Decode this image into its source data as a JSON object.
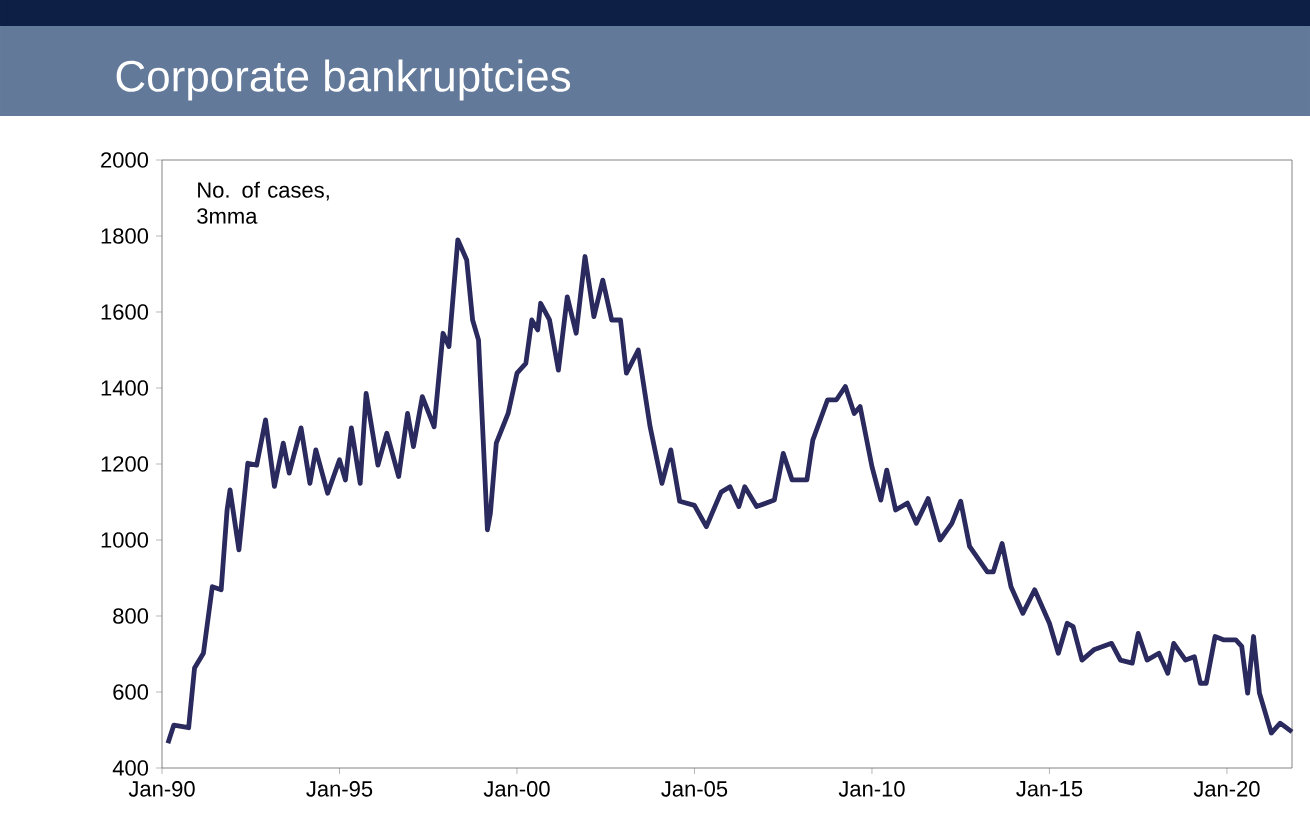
{
  "chart_data": {
    "type": "line",
    "title": "Corporate bankruptcies",
    "annotations": [
      "No. of cases, 3mma"
    ],
    "x": [
      "1990-03",
      "1990-05",
      "1990-10",
      "1990-12",
      "1991-03",
      "1991-06",
      "1991-09",
      "1991-11",
      "1991-12",
      "1992-03",
      "1992-06",
      "1992-09",
      "1992-12",
      "1993-03",
      "1993-06",
      "1993-08",
      "1993-12",
      "1994-03",
      "1994-05",
      "1994-09",
      "1995-01",
      "1995-03",
      "1995-05",
      "1995-08",
      "1995-10",
      "1996-02",
      "1996-05",
      "1996-09",
      "1996-12",
      "1997-02",
      "1997-05",
      "1997-09",
      "1997-12",
      "1998-02",
      "1998-05",
      "1998-08",
      "1998-10",
      "1998-12",
      "1999-03",
      "1999-04",
      "1999-06",
      "1999-10",
      "2000-01",
      "2000-04",
      "2000-06",
      "2000-08",
      "2000-09",
      "2000-12",
      "2001-03",
      "2001-06",
      "2001-09",
      "2001-12",
      "2002-03",
      "2002-06",
      "2002-09",
      "2002-12",
      "2003-02",
      "2003-06",
      "2003-10",
      "2004-02",
      "2004-05",
      "2004-08",
      "2005-01",
      "2005-05",
      "2005-10",
      "2006-01",
      "2006-04",
      "2006-06",
      "2006-10",
      "2007-04",
      "2007-07",
      "2007-10",
      "2008-03",
      "2008-05",
      "2008-10",
      "2009-01",
      "2009-04",
      "2009-07",
      "2009-09",
      "2010-01",
      "2010-04",
      "2010-06",
      "2010-09",
      "2011-01",
      "2011-04",
      "2011-08",
      "2011-12",
      "2012-04",
      "2012-07",
      "2012-10",
      "2013-04",
      "2013-06",
      "2013-09",
      "2013-12",
      "2014-04",
      "2014-08",
      "2015-01",
      "2015-04",
      "2015-07",
      "2015-09",
      "2015-12",
      "2016-04",
      "2016-10",
      "2017-01",
      "2017-05",
      "2017-07",
      "2017-10",
      "2018-02",
      "2018-05",
      "2018-07",
      "2018-11",
      "2019-02",
      "2019-04",
      "2019-06",
      "2019-09",
      "2019-12",
      "2020-04",
      "2020-06",
      "2020-08",
      "2020-10",
      "2020-12",
      "2021-04",
      "2021-07",
      "2021-11"
    ],
    "series": [
      {
        "color": "#2b2a5e",
        "values": [
          465,
          513,
          506,
          663,
          702,
          877,
          869,
          1079,
          1132,
          974,
          1202,
          1197,
          1316,
          1141,
          1255,
          1176,
          1295,
          1149,
          1237,
          1123,
          1211,
          1158,
          1295,
          1149,
          1386,
          1197,
          1281,
          1167,
          1333,
          1246,
          1377,
          1298,
          1544,
          1509,
          1790,
          1737,
          1579,
          1526,
          1027,
          1070,
          1255,
          1333,
          1439,
          1465,
          1579,
          1553,
          1623,
          1579,
          1447,
          1640,
          1544,
          1746,
          1588,
          1684,
          1579,
          1579,
          1439,
          1500,
          1298,
          1149,
          1237,
          1102,
          1091,
          1035,
          1126,
          1140,
          1088,
          1140,
          1088,
          1105,
          1228,
          1158,
          1158,
          1263,
          1369,
          1369,
          1404,
          1333,
          1351,
          1193,
          1105,
          1184,
          1079,
          1097,
          1044,
          1109,
          1000,
          1044,
          1102,
          983,
          916,
          916,
          991,
          877,
          807,
          869,
          781,
          702,
          781,
          772,
          684,
          711,
          728,
          684,
          676,
          754,
          684,
          702,
          649,
          728,
          684,
          693,
          623,
          623,
          746,
          737,
          737,
          720,
          597,
          746,
          597,
          492,
          518,
          495
        ]
      }
    ],
    "xlim": [
      "1990-01",
      "2021-11"
    ],
    "xticks": [
      {
        "value": "1990-01",
        "label": "Jan-90"
      },
      {
        "value": "1995-01",
        "label": "Jan-95"
      },
      {
        "value": "2000-01",
        "label": "Jan-00"
      },
      {
        "value": "2005-01",
        "label": "Jan-05"
      },
      {
        "value": "2010-01",
        "label": "Jan-10"
      },
      {
        "value": "2015-01",
        "label": "Jan-15"
      },
      {
        "value": "2020-01",
        "label": "Jan-20"
      }
    ],
    "ylim": [
      400,
      2000
    ],
    "yticks": [
      400,
      600,
      800,
      1000,
      1200,
      1400,
      1600,
      1800,
      2000
    ],
    "grid": false,
    "marker": "none",
    "line_style": "solid"
  }
}
